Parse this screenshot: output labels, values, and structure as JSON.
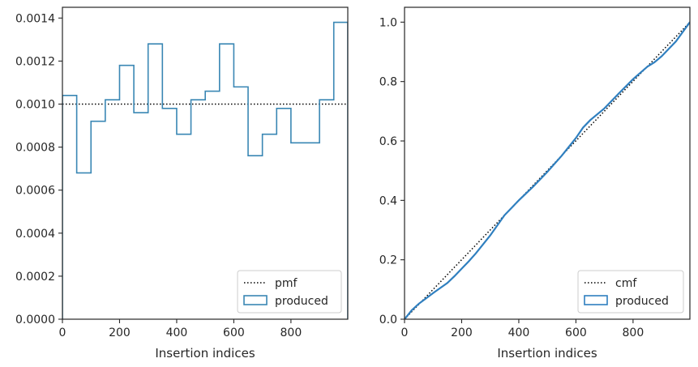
{
  "chart_data": [
    {
      "type": "step",
      "xlabel": "Insertion indices",
      "ylabel": "",
      "xlim": [
        0,
        999
      ],
      "ylim": [
        0,
        0.00145
      ],
      "xticks": [
        "0",
        "200",
        "400",
        "600",
        "800"
      ],
      "xtick_values": [
        0,
        200,
        400,
        600,
        800
      ],
      "yticks": [
        "0.0000",
        "0.0002",
        "0.0004",
        "0.0006",
        "0.0008",
        "0.0010",
        "0.0012",
        "0.0014"
      ],
      "ytick_values": [
        0,
        0.0002,
        0.0004,
        0.0006,
        0.0008,
        0.001,
        0.0012,
        0.0014
      ],
      "legend_position": "lower-right",
      "series": [
        {
          "name": "pmf",
          "style": "dotted",
          "color": "#000000",
          "x": [
            0,
            999
          ],
          "y": [
            0.001,
            0.001
          ]
        },
        {
          "name": "produced",
          "style": "step",
          "color": "#3a87b4",
          "bin_edges": [
            0,
            50,
            100,
            150,
            200,
            250,
            300,
            350,
            400,
            450,
            500,
            550,
            600,
            650,
            700,
            750,
            800,
            850,
            900,
            950,
            999
          ],
          "values": [
            0.00104,
            0.00068,
            0.00092,
            0.00102,
            0.00118,
            0.00096,
            0.00128,
            0.00098,
            0.00086,
            0.00102,
            0.00106,
            0.00128,
            0.00108,
            0.00076,
            0.00086,
            0.00098,
            0.00082,
            0.00082,
            0.00102,
            0.00138
          ]
        }
      ]
    },
    {
      "type": "line",
      "xlabel": "Insertion indices",
      "ylabel": "",
      "xlim": [
        0,
        999
      ],
      "ylim": [
        0,
        1.05
      ],
      "xticks": [
        "0",
        "200",
        "400",
        "600",
        "800"
      ],
      "xtick_values": [
        0,
        200,
        400,
        600,
        800
      ],
      "yticks": [
        "0.0",
        "0.2",
        "0.4",
        "0.6",
        "0.8",
        "1.0"
      ],
      "ytick_values": [
        0,
        0.2,
        0.4,
        0.6,
        0.8,
        1.0
      ],
      "legend_position": "lower-right",
      "series": [
        {
          "name": "cmf",
          "style": "dotted",
          "color": "#000000",
          "x": [
            0,
            999
          ],
          "y": [
            0,
            1.0
          ]
        },
        {
          "name": "produced",
          "style": "line",
          "color": "#2f7fbf",
          "x": [
            0,
            25,
            50,
            75,
            100,
            125,
            150,
            175,
            200,
            225,
            250,
            300,
            350,
            400,
            450,
            500,
            550,
            600,
            625,
            650,
            700,
            750,
            800,
            850,
            875,
            900,
            950,
            999
          ],
          "y": [
            0,
            0.03,
            0.052,
            0.07,
            0.088,
            0.105,
            0.122,
            0.145,
            0.17,
            0.195,
            0.222,
            0.282,
            0.35,
            0.4,
            0.446,
            0.496,
            0.55,
            0.61,
            0.645,
            0.67,
            0.71,
            0.76,
            0.808,
            0.85,
            0.865,
            0.885,
            0.935,
            1.0
          ]
        }
      ]
    }
  ]
}
